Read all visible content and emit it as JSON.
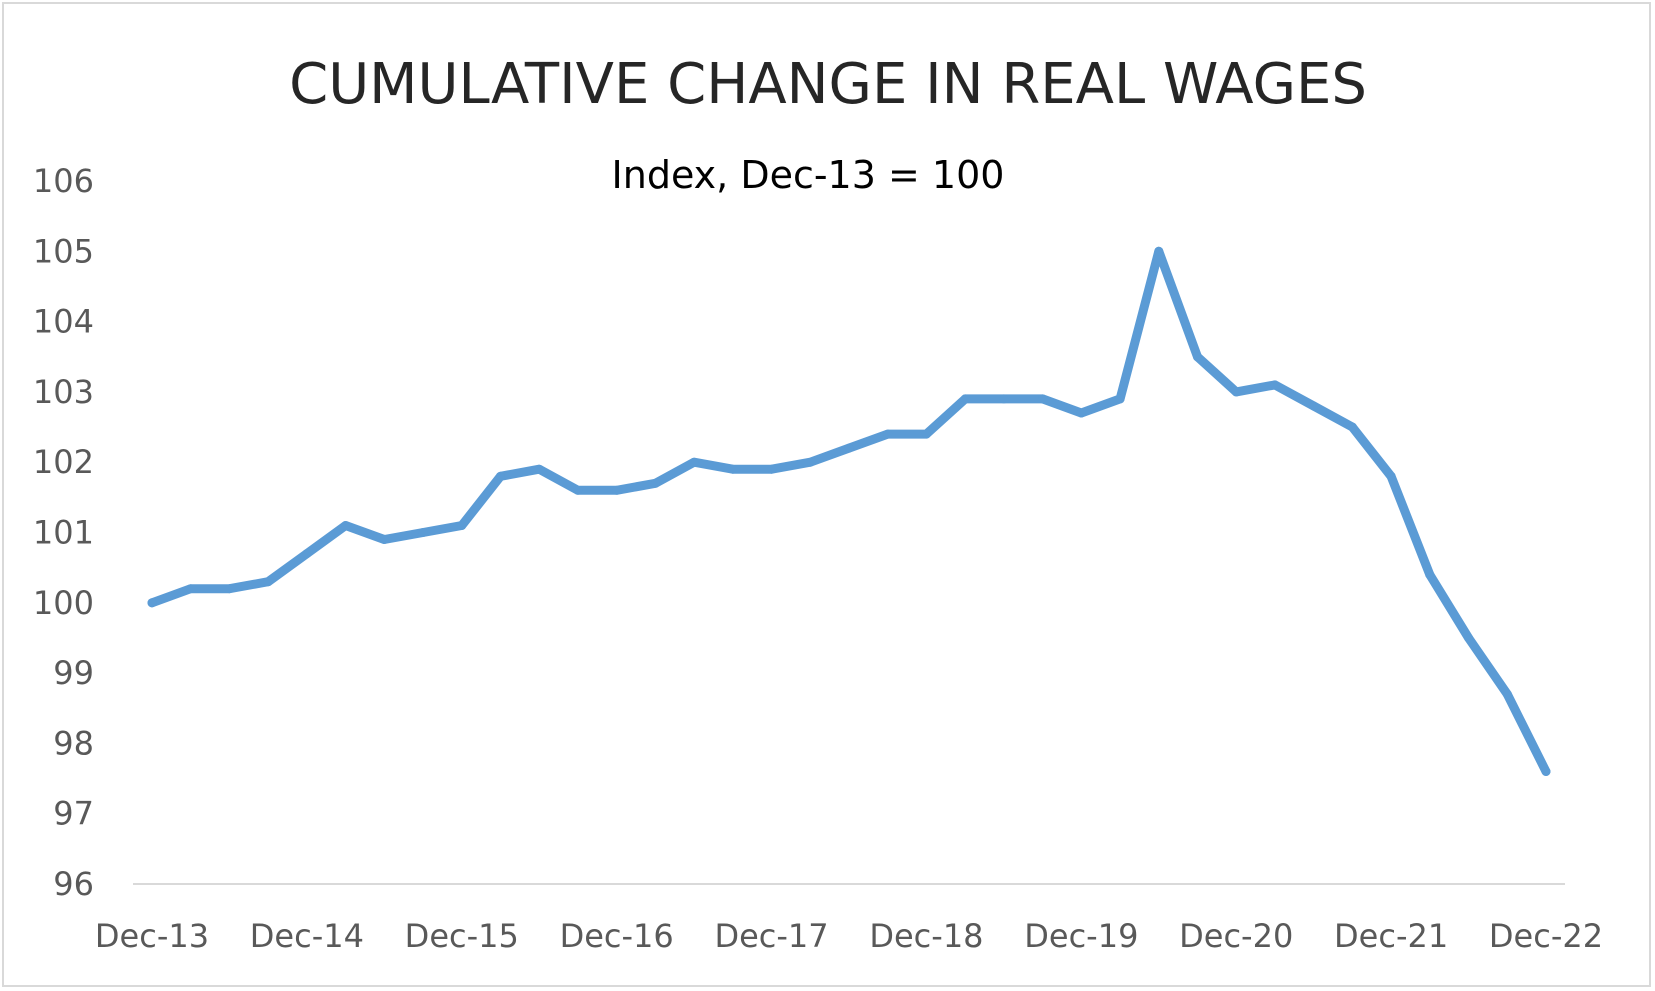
{
  "chart_data": {
    "type": "line",
    "title": "CUMULATIVE CHANGE IN REAL WAGES",
    "subtitle": "Index, Dec-13 = 100",
    "xlabel": "",
    "ylabel": "",
    "ylim": [
      96,
      106
    ],
    "yticks": [
      "96",
      "97",
      "98",
      "99",
      "100",
      "101",
      "102",
      "103",
      "104",
      "105",
      "106"
    ],
    "xticks": [
      "Dec-13",
      "Dec-14",
      "Dec-15",
      "Dec-16",
      "Dec-17",
      "Dec-18",
      "Dec-19",
      "Dec-20",
      "Dec-21",
      "Dec-22"
    ],
    "x_frequency": "quarterly",
    "grid": false,
    "legend": "none",
    "line_color": "#5b9bd5",
    "series": [
      {
        "values": [
          100.0,
          100.2,
          100.2,
          100.3,
          100.7,
          101.1,
          100.9,
          101.0,
          101.1,
          101.8,
          101.9,
          101.6,
          101.6,
          101.7,
          102.0,
          101.9,
          101.9,
          102.0,
          102.2,
          102.4,
          102.4,
          102.9,
          102.9,
          102.9,
          102.7,
          102.9,
          105.0,
          103.5,
          103.0,
          103.1,
          102.8,
          102.5,
          101.8,
          100.4,
          99.5,
          98.7,
          97.6
        ]
      }
    ]
  }
}
